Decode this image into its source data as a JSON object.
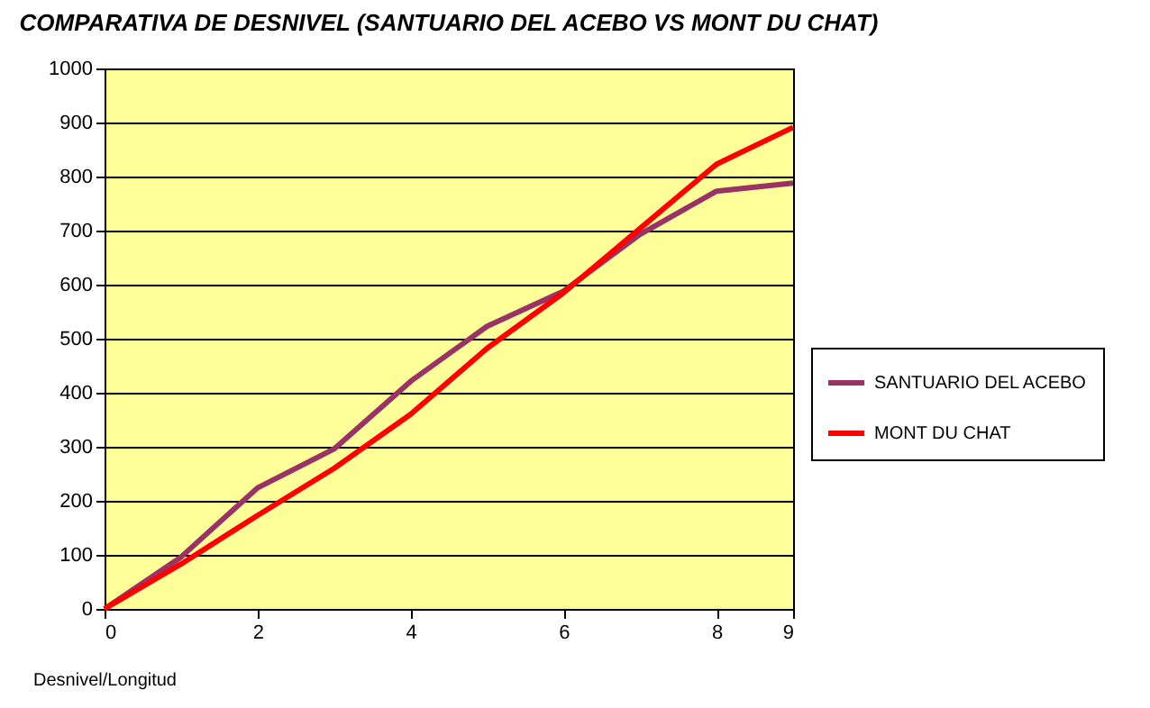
{
  "chart_data": {
    "type": "line",
    "title": "COMPARATIVA DE DESNIVEL (SANTUARIO DEL ACEBO VS MONT DU CHAT)",
    "xlabel": "Desnivel/Longitud",
    "x": [
      0,
      1,
      2,
      3,
      4,
      5,
      6,
      7,
      8,
      9
    ],
    "series": [
      {
        "name": "SANTUARIO DEL ACEBO",
        "color": "#993366",
        "values": [
          0,
          96,
          224,
          296,
          421,
          523,
          588,
          693,
          773,
          788
        ]
      },
      {
        "name": "MONT DU CHAT",
        "color": "#ff0000",
        "values": [
          0,
          83,
          173,
          260,
          360,
          482,
          585,
          704,
          823,
          891
        ]
      }
    ],
    "xlim": [
      0,
      9
    ],
    "xticks": [
      0,
      2,
      4,
      6,
      8,
      9
    ],
    "ylim": [
      0,
      1000
    ],
    "yticks": [
      0,
      100,
      200,
      300,
      400,
      500,
      600,
      700,
      800,
      900,
      1000
    ],
    "grid": "y",
    "legend": "right",
    "marker": "none",
    "line_style": "solid"
  }
}
